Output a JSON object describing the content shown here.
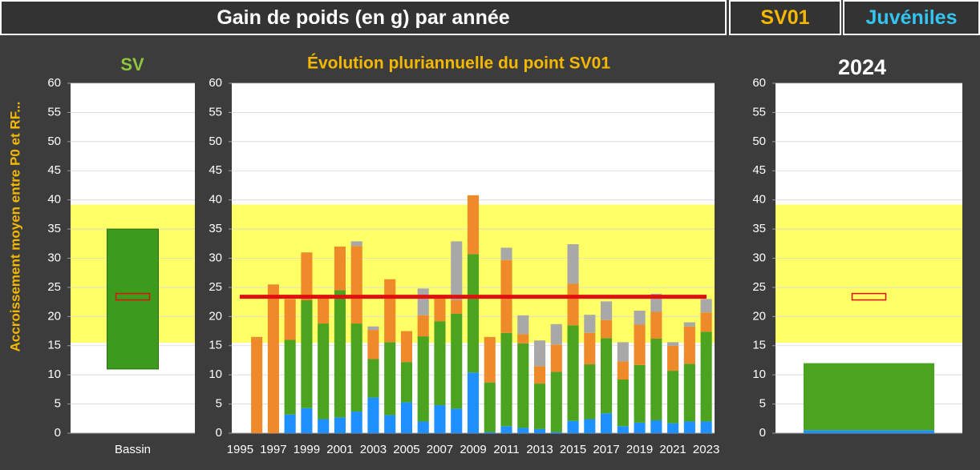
{
  "header": {
    "title": "Gain de poids (en g) par année",
    "point": "SV01",
    "group": "Juvéniles"
  },
  "chart_data": [
    {
      "type": "range",
      "title": "SV",
      "y_label": "Accroissement moyen entre P0 et RF...",
      "categories": [
        "Bassin"
      ],
      "low": [
        11
      ],
      "high": [
        35
      ],
      "color": "#3c9a1c",
      "reference": 23.4,
      "reference_style": "box",
      "reference_color": "#e01010",
      "band": [
        15.5,
        39.2
      ],
      "band_color": "#ffff66",
      "ylim": [
        0,
        60
      ],
      "yticks": [
        0,
        5,
        10,
        15,
        20,
        25,
        30,
        35,
        40,
        45,
        50,
        55,
        60
      ],
      "grid": true
    },
    {
      "type": "stacked_bar",
      "title": "Évolution pluriannuelle du point SV01",
      "categories": [
        "1995",
        null,
        "1997",
        null,
        "1999",
        null,
        "2001",
        null,
        "2003",
        null,
        "2005",
        null,
        "2007",
        null,
        "2009",
        null,
        "2011",
        null,
        "2013",
        null,
        "2015",
        null,
        "2017",
        null,
        "2019",
        null,
        "2021",
        null,
        "2023"
      ],
      "series": [
        {
          "color": "#1e90ff",
          "values": [
            0,
            0,
            0,
            3.2,
            4.3,
            2.4,
            2.7,
            3.7,
            6.1,
            3.1,
            5.3,
            2.0,
            4.8,
            4.2,
            10.4,
            0.2,
            1.2,
            0.9,
            0.7,
            0.2,
            2.1,
            2.4,
            3.4,
            1.2,
            1.8,
            2.2,
            1.7,
            2.0,
            2.0
          ]
        },
        {
          "color": "#4ca320",
          "values": [
            0,
            0,
            0,
            12.8,
            18.5,
            16.4,
            21.8,
            15.1,
            6.6,
            12.5,
            6.9,
            14.6,
            14.4,
            16.3,
            20.3,
            8.5,
            16,
            14.5,
            7.8,
            10.3,
            16.4,
            9.4,
            12.9,
            8,
            9.9,
            14,
            9,
            9.9,
            15.4
          ]
        },
        {
          "color": "#ee8a2a",
          "values": [
            0,
            16.5,
            25.5,
            7,
            8.2,
            4.5,
            7.5,
            13.3,
            5,
            10.8,
            5.3,
            3.6,
            4.2,
            2.3,
            10.1,
            7.8,
            12.5,
            1.6,
            3,
            4.7,
            7.1,
            5.4,
            3.1,
            3.1,
            6.9,
            4.6,
            4.3,
            6.4,
            3.3
          ]
        },
        {
          "color": "#a8a8a8",
          "values": [
            0,
            0,
            0,
            0,
            0,
            0,
            0,
            0.8,
            0.6,
            0,
            0,
            4.6,
            0,
            10.1,
            0,
            0,
            2.1,
            3.2,
            4.4,
            3.5,
            6.8,
            3.1,
            3.2,
            3.3,
            2.4,
            3.1,
            0.6,
            0.7,
            2.3
          ]
        }
      ],
      "reference": 23.4,
      "reference_style": "line",
      "reference_color": "#e01010",
      "band": [
        15.5,
        39.2
      ],
      "band_color": "#ffff66",
      "ylim": [
        0,
        60
      ],
      "yticks": [
        0,
        5,
        10,
        15,
        20,
        25,
        30,
        35,
        40,
        45,
        50,
        55,
        60
      ],
      "grid": true
    },
    {
      "type": "stacked_bar",
      "title": "2024",
      "categories": [
        null
      ],
      "series": [
        {
          "color": "#1e90ff",
          "values": [
            0.5
          ]
        },
        {
          "color": "#4ca320",
          "values": [
            11.5
          ]
        }
      ],
      "reference": 23.4,
      "reference_style": "box",
      "reference_color": "#e01010",
      "band": [
        15.5,
        39.2
      ],
      "band_color": "#ffff66",
      "ylim": [
        0,
        60
      ],
      "yticks": [
        0,
        5,
        10,
        15,
        20,
        25,
        30,
        35,
        40,
        45,
        50,
        55,
        60
      ],
      "grid": true
    }
  ]
}
